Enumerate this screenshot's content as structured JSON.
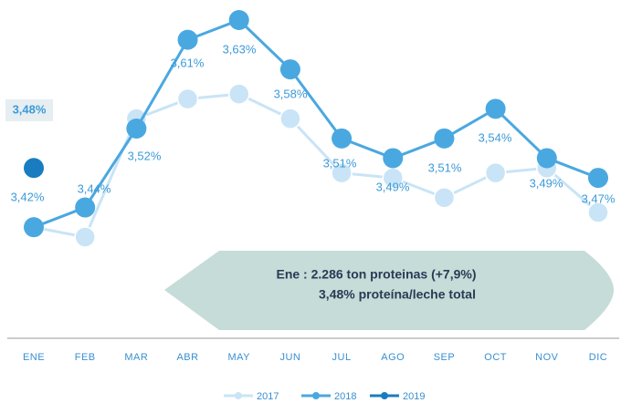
{
  "chart_data": {
    "type": "line",
    "categories": [
      "ENE",
      "FEB",
      "MAR",
      "ABR",
      "MAY",
      "JUN",
      "JUL",
      "AGO",
      "SEP",
      "OCT",
      "NOV",
      "DIC"
    ],
    "series": [
      {
        "name": "2017",
        "color": "#c9e4f6",
        "values": [
          3.42,
          3.41,
          3.53,
          3.55,
          3.555,
          3.53,
          3.475,
          3.47,
          3.45,
          3.475,
          3.48,
          3.435
        ]
      },
      {
        "name": "2018",
        "color": "#4aa8e0",
        "values": [
          3.42,
          3.44,
          3.52,
          3.61,
          3.63,
          3.58,
          3.51,
          3.49,
          3.51,
          3.54,
          3.49,
          3.47
        ],
        "value_labels": [
          "3,42%",
          "3,44%",
          "3,52%",
          "3,61%",
          "3,63%",
          "3,58%",
          "3,51%",
          "3,49%",
          "3,51%",
          "3,54%",
          "3,49%",
          "3,47%"
        ]
      },
      {
        "name": "2019",
        "color": "#1a7cc0",
        "values": [
          3.48,
          null,
          null,
          null,
          null,
          null,
          null,
          null,
          null,
          null,
          null,
          null
        ],
        "value_labels": [
          "3,48%",
          null,
          null,
          null,
          null,
          null,
          null,
          null,
          null,
          null,
          null,
          null
        ]
      }
    ],
    "annotations": [
      "Ene : 2.286  ton proteinas (+7,9%)",
      "3,48% proteína/leche total"
    ]
  }
}
